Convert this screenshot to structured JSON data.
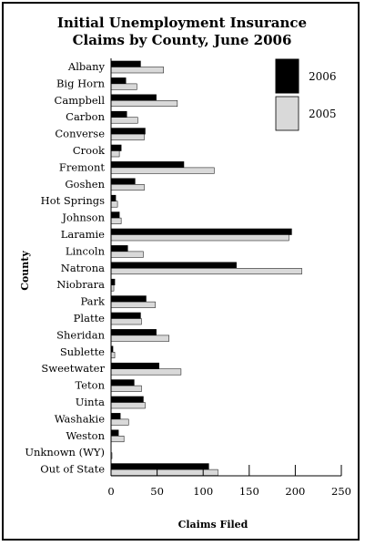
{
  "chart_data": {
    "type": "bar",
    "orientation": "horizontal",
    "title": [
      "Initial Unemployment Insurance",
      "Claims by County, June 2006"
    ],
    "xlabel": "Claims Filed",
    "ylabel": "County",
    "xlim": [
      0,
      250
    ],
    "xticks": [
      0,
      50,
      100,
      150,
      200,
      250
    ],
    "legend_position": "top-right",
    "grid": false,
    "categories": [
      "Albany",
      "Big Horn",
      "Campbell",
      "Carbon",
      "Converse",
      "Crook",
      "Fremont",
      "Goshen",
      "Hot Springs",
      "Johnson",
      "Laramie",
      "Lincoln",
      "Natrona",
      "Niobrara",
      "Park",
      "Platte",
      "Sheridan",
      "Sublette",
      "Sweetwater",
      "Teton",
      "Uinta",
      "Washakie",
      "Weston",
      "Unknown (WY)",
      "Out of State"
    ],
    "series": [
      {
        "name": "2006",
        "color": "#000000",
        "values": [
          32,
          16,
          49,
          17,
          37,
          11,
          79,
          26,
          5,
          9,
          196,
          18,
          136,
          4,
          38,
          32,
          49,
          2,
          52,
          25,
          35,
          10,
          8,
          0,
          106
        ]
      },
      {
        "name": "2005",
        "color": "#d9d9d9",
        "values": [
          57,
          28,
          72,
          29,
          36,
          9,
          112,
          36,
          7,
          11,
          193,
          35,
          207,
          3,
          48,
          33,
          63,
          4,
          76,
          33,
          37,
          19,
          14,
          1,
          116
        ]
      }
    ]
  }
}
